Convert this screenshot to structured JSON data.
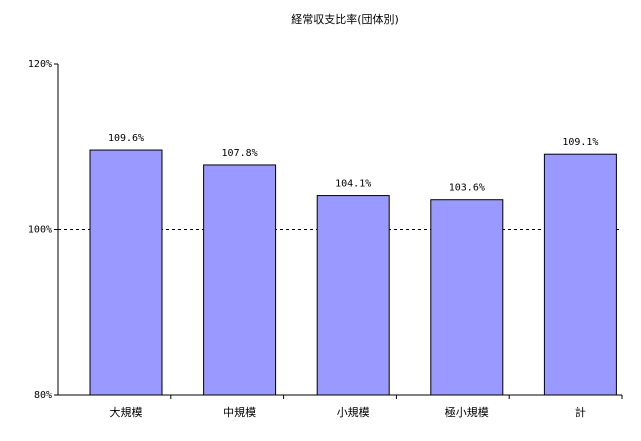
{
  "chart_data": {
    "type": "bar",
    "title": "経常収支比率(団体別)",
    "categories": [
      "大規模",
      "中規模",
      "小規模",
      "極小規模",
      "計"
    ],
    "values": [
      109.6,
      107.8,
      104.1,
      103.6,
      109.1
    ],
    "value_labels": [
      "109.6%",
      "107.8%",
      "104.1%",
      "103.6%",
      "109.1%"
    ],
    "color": "#9999ff",
    "ylim": [
      80,
      120
    ],
    "yticks": [
      {
        "value": 80,
        "label": "80%"
      },
      {
        "value": 100,
        "label": "100%"
      },
      {
        "value": 120,
        "label": "120%"
      }
    ],
    "grid": true
  }
}
